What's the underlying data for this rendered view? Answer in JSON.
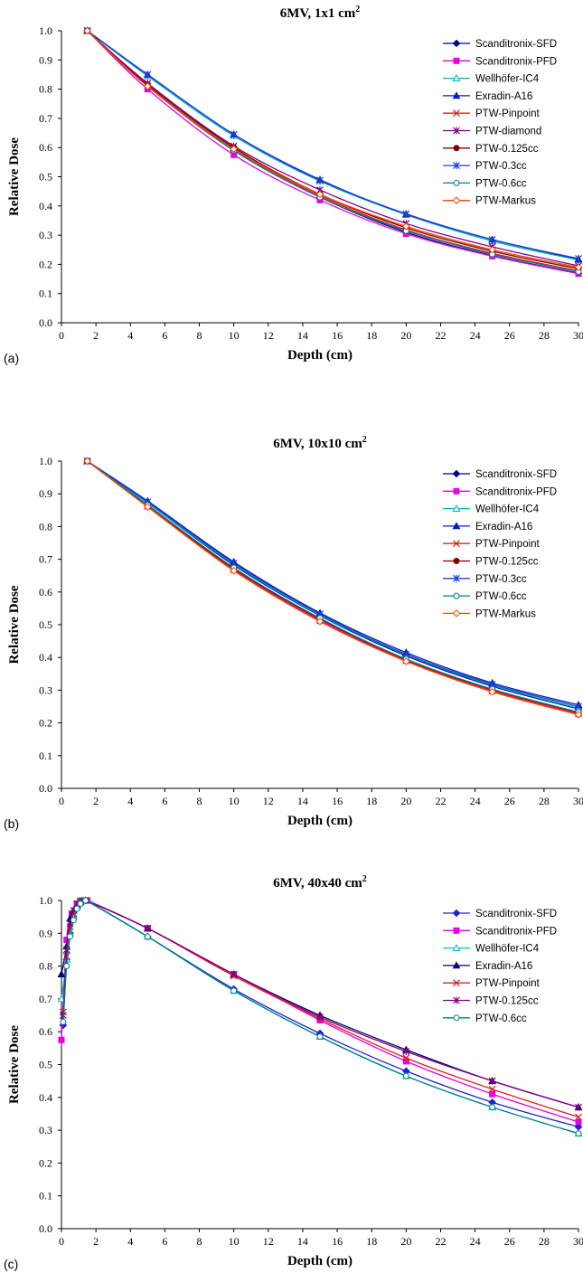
{
  "chart_data": [
    {
      "type": "line",
      "panel_label": "(a)",
      "title": "6MV, 1x1 cm",
      "title_sup": "2",
      "xlabel": "Depth (cm)",
      "ylabel": "Relative Dose",
      "xlim": [
        0,
        30
      ],
      "ylim": [
        0,
        1
      ],
      "xticks": [
        0,
        2,
        4,
        6,
        8,
        10,
        12,
        14,
        16,
        18,
        20,
        22,
        24,
        26,
        28,
        30
      ],
      "yticks": [
        "0.0",
        "0.1",
        "0.2",
        "0.3",
        "0.4",
        "0.5",
        "0.6",
        "0.7",
        "0.8",
        "0.9",
        "1.0"
      ],
      "grid": false,
      "legend_position": "top-right",
      "x": [
        1.5,
        5,
        10,
        15,
        20,
        25,
        30
      ],
      "series": [
        {
          "name": "Scanditronix-SFD",
          "color": "#000080",
          "marker": "diamond",
          "values": [
            1.0,
            0.81,
            0.59,
            0.43,
            0.31,
            0.23,
            0.17
          ]
        },
        {
          "name": "Scanditronix-PFD",
          "color": "#e600e6",
          "marker": "square",
          "values": [
            1.0,
            0.8,
            0.575,
            0.42,
            0.305,
            0.228,
            0.168
          ]
        },
        {
          "name": "Wellhöfer-IC4",
          "color": "#00b0c0",
          "marker": "triangle-open",
          "values": [
            1.0,
            0.845,
            0.64,
            0.485,
            0.37,
            0.28,
            0.215
          ]
        },
        {
          "name": "Exradin-A16",
          "color": "#0020c0",
          "marker": "triangle",
          "values": [
            1.0,
            0.85,
            0.645,
            0.49,
            0.372,
            0.285,
            0.218
          ]
        },
        {
          "name": "PTW-Pinpoint",
          "color": "#e02020",
          "marker": "x",
          "values": [
            1.0,
            0.81,
            0.595,
            0.435,
            0.318,
            0.238,
            0.178
          ]
        },
        {
          "name": "PTW-diamond",
          "color": "#800080",
          "marker": "star",
          "values": [
            1.0,
            0.82,
            0.605,
            0.455,
            0.34,
            0.26,
            0.195
          ]
        },
        {
          "name": "PTW-0.125cc",
          "color": "#800000",
          "marker": "circle",
          "values": [
            1.0,
            0.815,
            0.6,
            0.44,
            0.325,
            0.245,
            0.185
          ]
        },
        {
          "name": "PTW-0.3cc",
          "color": "#2040d0",
          "marker": "star",
          "values": [
            1.0,
            0.85,
            0.645,
            0.488,
            0.373,
            0.285,
            0.22
          ]
        },
        {
          "name": "PTW-0.6cc",
          "color": "#008080",
          "marker": "circle-open",
          "values": [
            1.0,
            0.81,
            0.59,
            0.43,
            0.315,
            0.235,
            0.175
          ]
        },
        {
          "name": "PTW-Markus",
          "color": "#ff4000",
          "marker": "diamond-open",
          "values": [
            1.0,
            0.81,
            0.595,
            0.44,
            0.33,
            0.25,
            0.19
          ]
        }
      ]
    },
    {
      "type": "line",
      "panel_label": "(b)",
      "title": "6MV, 10x10 cm",
      "title_sup": "2",
      "xlabel": "Depth (cm)",
      "ylabel": "Relative Dose",
      "xlim": [
        0,
        30
      ],
      "ylim": [
        0,
        1
      ],
      "xticks": [
        0,
        2,
        4,
        6,
        8,
        10,
        12,
        14,
        16,
        18,
        20,
        22,
        24,
        26,
        28,
        30
      ],
      "yticks": [
        "0.0",
        "0.1",
        "0.2",
        "0.3",
        "0.4",
        "0.5",
        "0.6",
        "0.7",
        "0.8",
        "0.9",
        "1.0"
      ],
      "grid": false,
      "legend_position": "top-right",
      "x": [
        1.5,
        5,
        10,
        15,
        20,
        25,
        30
      ],
      "series": [
        {
          "name": "Scanditronix-SFD",
          "color": "#000080",
          "marker": "diamond",
          "values": [
            1.0,
            0.872,
            0.682,
            0.528,
            0.405,
            0.312,
            0.243
          ]
        },
        {
          "name": "Scanditronix-PFD",
          "color": "#e600e6",
          "marker": "square",
          "values": [
            1.0,
            0.862,
            0.67,
            0.515,
            0.392,
            0.3,
            0.23
          ]
        },
        {
          "name": "Wellhöfer-IC4",
          "color": "#00b0c0",
          "marker": "triangle-open",
          "values": [
            1.0,
            0.872,
            0.685,
            0.53,
            0.408,
            0.315,
            0.245
          ]
        },
        {
          "name": "Exradin-A16",
          "color": "#0020c0",
          "marker": "triangle",
          "values": [
            1.0,
            0.878,
            0.692,
            0.536,
            0.415,
            0.322,
            0.255
          ]
        },
        {
          "name": "PTW-Pinpoint",
          "color": "#e02020",
          "marker": "x",
          "values": [
            1.0,
            0.862,
            0.668,
            0.512,
            0.39,
            0.298,
            0.228
          ]
        },
        {
          "name": "PTW-0.125cc",
          "color": "#800000",
          "marker": "circle",
          "values": [
            1.0,
            0.865,
            0.672,
            0.518,
            0.394,
            0.302,
            0.232
          ]
        },
        {
          "name": "PTW-0.3cc",
          "color": "#2040d0",
          "marker": "star",
          "values": [
            1.0,
            0.875,
            0.688,
            0.533,
            0.41,
            0.318,
            0.25
          ]
        },
        {
          "name": "PTW-0.6cc",
          "color": "#008080",
          "marker": "circle-open",
          "values": [
            1.0,
            0.866,
            0.674,
            0.52,
            0.395,
            0.303,
            0.233
          ]
        },
        {
          "name": "PTW-Markus",
          "color": "#ff4000",
          "marker": "diamond-open",
          "values": [
            1.0,
            0.86,
            0.665,
            0.51,
            0.388,
            0.295,
            0.225
          ]
        }
      ]
    },
    {
      "type": "line",
      "panel_label": "(c)",
      "title": "6MV, 40x40 cm",
      "title_sup": "2",
      "xlabel": "Depth (cm)",
      "ylabel": "Relative Dose",
      "xlim": [
        0,
        30
      ],
      "ylim": [
        0,
        1
      ],
      "xticks": [
        0,
        2,
        4,
        6,
        8,
        10,
        12,
        14,
        16,
        18,
        20,
        22,
        24,
        26,
        28,
        30
      ],
      "yticks": [
        "0.0",
        "0.1",
        "0.2",
        "0.3",
        "0.4",
        "0.5",
        "0.6",
        "0.7",
        "0.8",
        "0.9",
        "1.0"
      ],
      "grid": false,
      "legend_position": "top-right",
      "series": [
        {
          "name": "Scanditronix-SFD",
          "color": "#2020d0",
          "marker": "diamond",
          "x": [
            0.1,
            0.3,
            0.5,
            0.7,
            0.9,
            1.1,
            1.4,
            5,
            10,
            15,
            20,
            25,
            30
          ],
          "values": [
            0.62,
            0.82,
            0.9,
            0.95,
            0.98,
            0.995,
            1.0,
            0.89,
            0.73,
            0.595,
            0.48,
            0.385,
            0.31
          ]
        },
        {
          "name": "Scanditronix-PFD",
          "color": "#e600e6",
          "marker": "square",
          "x": [
            0.0,
            0.3,
            0.6,
            0.9,
            1.2,
            1.5,
            5,
            10,
            15,
            20,
            25,
            30
          ],
          "values": [
            0.575,
            0.88,
            0.96,
            0.99,
            1.0,
            1.0,
            0.915,
            0.775,
            0.635,
            0.51,
            0.41,
            0.325
          ]
        },
        {
          "name": "Wellhöfer-IC4",
          "color": "#00c0d0",
          "marker": "triangle-open",
          "x": [
            0.0,
            0.3,
            0.5,
            0.7,
            0.9,
            1.1,
            1.4,
            5,
            10,
            15,
            20,
            25,
            30
          ],
          "values": [
            0.7,
            0.82,
            0.9,
            0.95,
            0.98,
            0.995,
            1.0,
            0.89,
            0.725,
            0.585,
            0.465,
            0.37,
            0.29
          ]
        },
        {
          "name": "Exradin-A16",
          "color": "#000070",
          "marker": "triangle",
          "x": [
            0.0,
            0.3,
            0.5,
            0.7,
            0.9,
            1.1,
            1.4,
            5,
            10,
            15,
            20,
            25,
            30
          ],
          "values": [
            0.775,
            0.86,
            0.945,
            0.97,
            0.985,
            0.995,
            1.0,
            0.915,
            0.775,
            0.65,
            0.545,
            0.45,
            0.37
          ]
        },
        {
          "name": "PTW-Pinpoint",
          "color": "#e02020",
          "marker": "x",
          "x": [
            0.1,
            0.3,
            0.5,
            0.7,
            0.9,
            1.1,
            1.4,
            5,
            10,
            15,
            20,
            25,
            30
          ],
          "values": [
            0.66,
            0.83,
            0.92,
            0.96,
            0.985,
            0.995,
            1.0,
            0.915,
            0.77,
            0.64,
            0.52,
            0.425,
            0.34
          ]
        },
        {
          "name": "PTW-0.125cc",
          "color": "#800080",
          "marker": "star",
          "x": [
            0.1,
            0.3,
            0.5,
            0.7,
            0.9,
            1.1,
            1.4,
            5,
            10,
            15,
            20,
            25,
            30
          ],
          "values": [
            0.65,
            0.85,
            0.93,
            0.97,
            0.99,
            0.998,
            1.0,
            0.915,
            0.775,
            0.645,
            0.54,
            0.45,
            0.37
          ]
        },
        {
          "name": "PTW-0.6cc",
          "color": "#008080",
          "marker": "circle-open",
          "x": [
            0.1,
            0.3,
            0.5,
            0.7,
            0.9,
            1.1,
            1.4,
            5,
            10,
            15,
            20,
            25,
            30
          ],
          "values": [
            0.63,
            0.8,
            0.89,
            0.94,
            0.975,
            0.99,
            1.0,
            0.89,
            0.725,
            0.585,
            0.465,
            0.37,
            0.29
          ]
        }
      ]
    }
  ]
}
